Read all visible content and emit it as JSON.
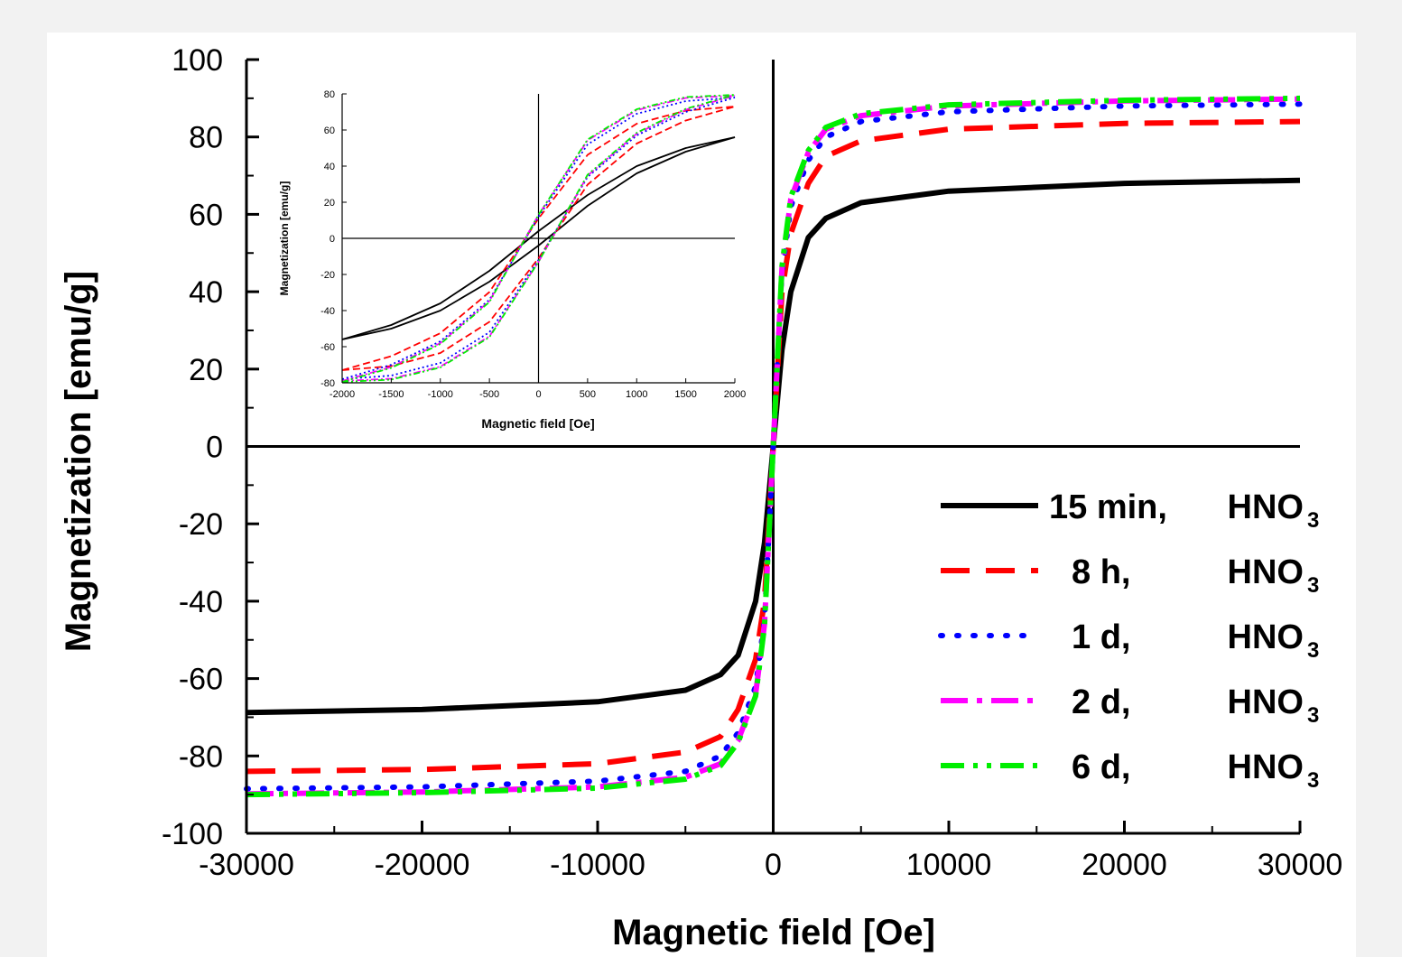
{
  "chart_data": [
    {
      "type": "line",
      "title": "",
      "xlabel": "Magnetic field [Oe]",
      "ylabel": "Magnetization [emu/g]",
      "xlim": [
        -30000,
        30000
      ],
      "ylim": [
        -100,
        100
      ],
      "xticks": [
        -30000,
        -20000,
        -10000,
        0,
        10000,
        20000,
        30000
      ],
      "yticks": [
        -100,
        -80,
        -60,
        -40,
        -20,
        0,
        20,
        40,
        60,
        80,
        100
      ],
      "grid": false,
      "legend_position": "bottom-right",
      "series": [
        {
          "name": "15 min, HNO3",
          "legend_time": "15 min,",
          "legend_acid": "HNO",
          "legend_sub": "3",
          "color": "#000000",
          "style": "solid",
          "x": [
            -30000,
            -20000,
            -10000,
            -5000,
            -3000,
            -2000,
            -1000,
            -500,
            0,
            500,
            1000,
            2000,
            3000,
            5000,
            10000,
            20000,
            30000
          ],
          "y": [
            -68.8,
            -68,
            -66,
            -63,
            -59,
            -54,
            -40,
            -25,
            0,
            25,
            40,
            54,
            59,
            63,
            66,
            68,
            68.8
          ]
        },
        {
          "name": "8 h, HNO3",
          "legend_time": "8 h,",
          "legend_acid": "HNO",
          "legend_sub": "3",
          "color": "#ff0000",
          "style": "dash",
          "x": [
            -30000,
            -20000,
            -10000,
            -5000,
            -3000,
            -2000,
            -1000,
            -500,
            0,
            500,
            1000,
            2000,
            3000,
            5000,
            10000,
            20000,
            30000
          ],
          "y": [
            -84,
            -83.5,
            -82,
            -79,
            -75,
            -68,
            -55,
            -40,
            0,
            40,
            55,
            68,
            75,
            79,
            82,
            83.5,
            84
          ]
        },
        {
          "name": "1 d, HNO3",
          "legend_time": "1 d,",
          "legend_acid": "HNO",
          "legend_sub": "3",
          "color": "#0000ff",
          "style": "dot",
          "x": [
            -30000,
            -20000,
            -10000,
            -5000,
            -3000,
            -2000,
            -1000,
            -500,
            0,
            500,
            1000,
            2000,
            3000,
            5000,
            10000,
            20000,
            30000
          ],
          "y": [
            -88.5,
            -88,
            -86.5,
            -84,
            -80,
            -74,
            -62,
            -45,
            0,
            45,
            62,
            74,
            80,
            84,
            86.5,
            88,
            88.5
          ]
        },
        {
          "name": "2 d, HNO3",
          "legend_time": "2 d,",
          "legend_acid": "HNO",
          "legend_sub": "3",
          "color": "#ff00ff",
          "style": "dashdot",
          "x": [
            -30000,
            -20000,
            -10000,
            -5000,
            -3000,
            -2000,
            -1000,
            -500,
            0,
            500,
            1000,
            2000,
            3000,
            5000,
            10000,
            20000,
            30000
          ],
          "y": [
            -89.8,
            -89.3,
            -88,
            -85.5,
            -82,
            -76,
            -64,
            -46,
            0,
            46,
            64,
            76,
            82,
            85.5,
            88,
            89.3,
            89.8
          ]
        },
        {
          "name": "6 d, HNO3",
          "legend_time": "6 d,",
          "legend_acid": "HNO",
          "legend_sub": "3",
          "color": "#00ee00",
          "style": "dashdotdot",
          "x": [
            -30000,
            -20000,
            -10000,
            -5000,
            -3000,
            -2000,
            -1000,
            -500,
            0,
            500,
            1000,
            2000,
            3000,
            5000,
            10000,
            20000,
            30000
          ],
          "y": [
            -90,
            -89.5,
            -88.3,
            -86,
            -82.5,
            -76.5,
            -64.5,
            -46.5,
            0,
            46.5,
            64.5,
            76.5,
            82.5,
            86,
            88.3,
            89.5,
            90
          ]
        }
      ]
    },
    {
      "type": "line",
      "title": "",
      "xlabel": "Magnetic field [Oe]",
      "ylabel": "Magnetization [emu/g]",
      "xlim": [
        -2000,
        2000
      ],
      "ylim": [
        -80,
        80
      ],
      "xticks": [
        -2000,
        -1500,
        -1000,
        -500,
        0,
        500,
        1000,
        1500,
        2000
      ],
      "yticks": [
        -80,
        -60,
        -40,
        -20,
        0,
        20,
        40,
        60,
        80
      ],
      "grid": false,
      "series": [
        {
          "color": "#000000",
          "style": "solid",
          "x": [
            -2000,
            -1500,
            -1000,
            -500,
            0,
            500,
            1000,
            1500,
            2000
          ],
          "y": [
            -56,
            -49,
            -38,
            -21,
            0,
            21,
            38,
            49,
            56
          ],
          "loop_offset": 4
        },
        {
          "color": "#ff0000",
          "style": "dash",
          "x": [
            -2000,
            -1500,
            -1000,
            -500,
            0,
            500,
            1000,
            1500,
            2000
          ],
          "y": [
            -73,
            -68,
            -58,
            -38,
            0,
            38,
            58,
            68,
            73
          ],
          "loop_offset": 11
        },
        {
          "color": "#0000ff",
          "style": "dot",
          "x": [
            -2000,
            -1500,
            -1000,
            -500,
            0,
            500,
            1000,
            1500,
            2000
          ],
          "y": [
            -78,
            -73,
            -63,
            -43,
            0,
            43,
            63,
            73,
            78
          ],
          "loop_offset": 12
        },
        {
          "color": "#ff00ff",
          "style": "dashdot",
          "x": [
            -2000,
            -1500,
            -1000,
            -500,
            0,
            500,
            1000,
            1500,
            2000
          ],
          "y": [
            -79,
            -74.5,
            -64.5,
            -44.5,
            0,
            44.5,
            64.5,
            74.5,
            79
          ],
          "loop_offset": 13
        },
        {
          "color": "#00ee00",
          "style": "dashdotdot",
          "x": [
            -2000,
            -1500,
            -1000,
            -500,
            0,
            500,
            1000,
            1500,
            2000
          ],
          "y": [
            -79.5,
            -75,
            -65,
            -45,
            0,
            45,
            65,
            75,
            79.5
          ],
          "loop_offset": 13
        }
      ]
    }
  ]
}
